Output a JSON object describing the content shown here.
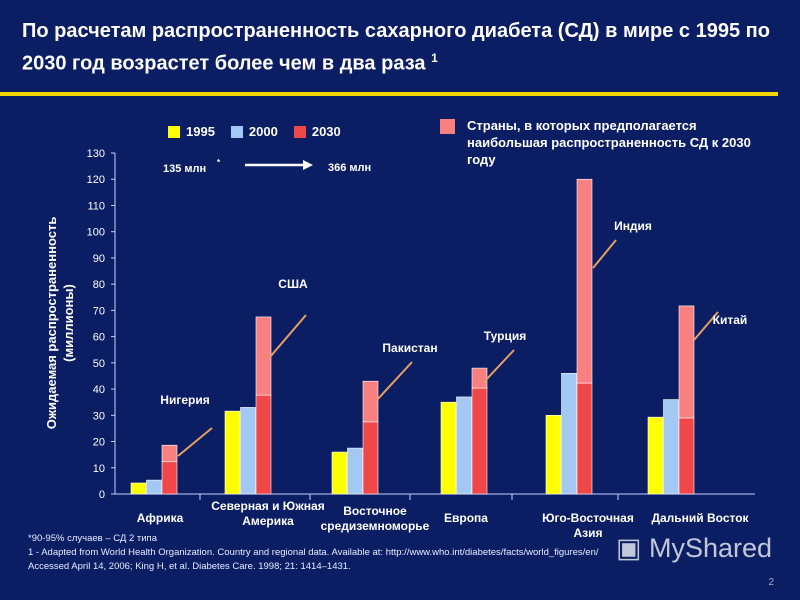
{
  "title": "По расчетам распространенность сахарного диабета (СД) в мире с 1995 по 2030 год возрастет более чем в два раза",
  "title_sup": "1",
  "highlight_legend": "Страны, в которых предполагается наибольшая распространенность СД к 2030 году",
  "totals": {
    "from": "135 млн",
    "from_mark": "*",
    "to": "366 млн"
  },
  "chart_data": {
    "type": "bar",
    "ylabel": "Ожидаемая распространенность (миллионы)",
    "ylim": [
      0,
      130
    ],
    "yticks": [
      0,
      10,
      20,
      30,
      40,
      50,
      60,
      70,
      80,
      90,
      100,
      110,
      120,
      130
    ],
    "categories": [
      "Африка",
      "Северная и Южная Америка",
      "Восточное средиземноморье",
      "Европа",
      "Юго-Восточная Азия",
      "Дальний Восток"
    ],
    "series": [
      {
        "name": "1995",
        "color": "#ffff00",
        "values": [
          4.2,
          31.6,
          16,
          35,
          30,
          29.3
        ]
      },
      {
        "name": "2000",
        "color": "#a4c8f4",
        "values": [
          5.3,
          33,
          17.5,
          37,
          46,
          36
        ]
      },
      {
        "name": "2030",
        "color": "#f04848",
        "values": [
          18.6,
          67.5,
          43,
          48,
          120,
          71.7
        ]
      }
    ],
    "highlight": {
      "color": "#f88080",
      "from_values": [
        12.3,
        37.7,
        27.5,
        40.4,
        42.3,
        29
      ],
      "countries": [
        "Нигерия",
        "США",
        "Пакистан",
        "Турция",
        "Индия",
        "Китай"
      ]
    },
    "grid": false,
    "legend": "top"
  },
  "footnotes": [
    "*90-95%  случаев – СД 2 типа",
    "1 - Adapted from World Health Organization. Country and regional data. Available at: http://www.who.int/diabetes/facts/world_figures/en/",
    "Accessed April 14, 2006; King H, et al. Diabetes Care. 1998; 21: 1414–1431."
  ],
  "watermark": "MyShared",
  "page_number": "2"
}
